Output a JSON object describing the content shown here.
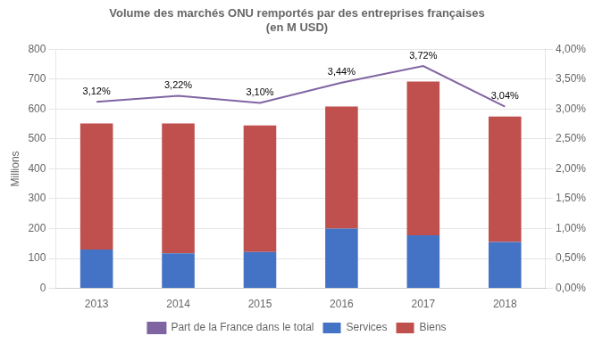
{
  "chart_data": {
    "type": "bar",
    "title": "Volume des marchés ONU remportés par des entreprises françaises",
    "subtitle": "(en M USD)",
    "categories": [
      "2013",
      "2014",
      "2015",
      "2016",
      "2017",
      "2018"
    ],
    "series": [
      {
        "name": "Services",
        "type": "bar",
        "color": "#4472C4",
        "values": [
          130,
          117,
          122,
          200,
          178,
          155
        ]
      },
      {
        "name": "Biens",
        "type": "bar",
        "color": "#C0504D",
        "values": [
          422,
          435,
          423,
          408,
          514,
          420
        ]
      },
      {
        "name": "Part de la France dans le total",
        "type": "line",
        "color": "#8064A2",
        "axis": "y2",
        "marker": "none",
        "values": [
          3.12,
          3.22,
          3.1,
          3.44,
          3.72,
          3.04
        ],
        "value_labels": [
          "3,12%",
          "3,22%",
          "3,10%",
          "3,44%",
          "3,72%",
          "3,04%"
        ]
      }
    ],
    "stacked": true,
    "ylabel": "Millions",
    "ylim": [
      0,
      800
    ],
    "yticks": [
      0,
      100,
      200,
      300,
      400,
      500,
      600,
      700,
      800
    ],
    "y2lim": [
      0.0,
      4.0
    ],
    "y2ticks": [
      {
        "value": 0.0,
        "label": "0,00%"
      },
      {
        "value": 0.5,
        "label": "0,50%"
      },
      {
        "value": 1.0,
        "label": "1,00%"
      },
      {
        "value": 1.5,
        "label": "1,50%"
      },
      {
        "value": 2.0,
        "label": "2,00%"
      },
      {
        "value": 2.5,
        "label": "2,50%"
      },
      {
        "value": 3.0,
        "label": "3,00%"
      },
      {
        "value": 3.5,
        "label": "3,50%"
      },
      {
        "value": 4.0,
        "label": "4,00%"
      }
    ],
    "grid": true,
    "legend": "bottom",
    "data_labels": true
  }
}
